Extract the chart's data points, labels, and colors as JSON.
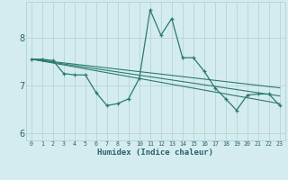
{
  "title": "",
  "xlabel": "Humidex (Indice chaleur)",
  "ylabel": "",
  "bg_color": "#d4ecee",
  "line_color": "#2a7a6e",
  "grid_color": "#b8d4d8",
  "text_color": "#2a6070",
  "xlim": [
    -0.5,
    23.5
  ],
  "ylim": [
    5.85,
    8.75
  ],
  "yticks": [
    6,
    7,
    8
  ],
  "xtick_labels": [
    "0",
    "1",
    "2",
    "3",
    "4",
    "5",
    "6",
    "7",
    "8",
    "9",
    "10",
    "11",
    "12",
    "13",
    "14",
    "15",
    "16",
    "17",
    "18",
    "19",
    "20",
    "21",
    "22",
    "23"
  ],
  "main_line_x": [
    0,
    1,
    2,
    3,
    4,
    5,
    6,
    7,
    8,
    9,
    10,
    11,
    12,
    13,
    14,
    15,
    16,
    17,
    18,
    19,
    20,
    21,
    22,
    23
  ],
  "main_line_y": [
    7.55,
    7.55,
    7.52,
    7.25,
    7.22,
    7.22,
    6.85,
    6.58,
    6.62,
    6.72,
    7.15,
    8.58,
    8.05,
    8.4,
    7.58,
    7.58,
    7.3,
    6.95,
    6.72,
    6.48,
    6.8,
    6.82,
    6.82,
    6.58
  ],
  "trend_lines": [
    {
      "x": [
        0,
        23
      ],
      "y": [
        7.55,
        6.62
      ]
    },
    {
      "x": [
        0,
        23
      ],
      "y": [
        7.55,
        6.78
      ]
    },
    {
      "x": [
        0,
        23
      ],
      "y": [
        7.55,
        6.95
      ]
    }
  ]
}
